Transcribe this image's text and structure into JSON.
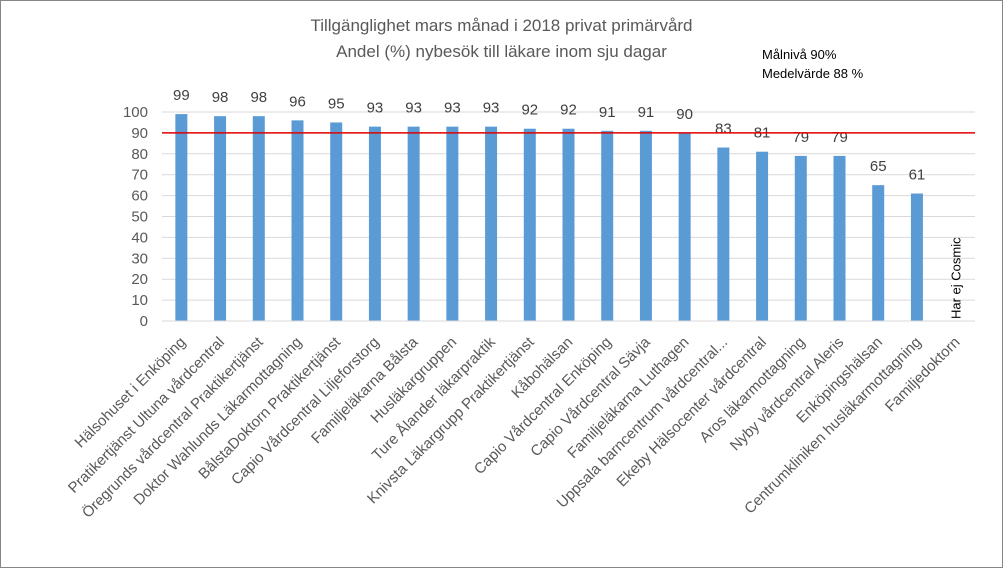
{
  "chart_data": {
    "type": "bar",
    "title": "Tillgänglighet mars månad i 2018 privat primärvård",
    "subtitle": "Andel (%) nybesök till läkare inom sju dagar",
    "annotations": [
      "Målnivå 90%",
      "Medelvärde 88 %"
    ],
    "target_line": {
      "value": 90,
      "color": "#e00000"
    },
    "categories": [
      "Hälsohuset i Enköping",
      "Pratikertjänst Ultuna vårdcentral",
      "Öregrunds vårdcentral Praktikertjänst",
      "Doktor Wahlunds Läkarmottagning",
      "BålstaDoktorn Praktikertjänst",
      "Capio Vårdcentral Liljeforstorg",
      "Familjeläkarna Bålsta",
      "Husläkargruppen",
      "Ture Ålander läkarpraktik",
      "Knivsta Läkargrupp Praktikertjänst",
      "Kåbohälsan",
      "Capio Vårdcentral Enköping",
      "Capio Vårdcentral Sävja",
      "Familjeläkarna Luthagen",
      "Uppsala barncentrum vårdcentral...",
      "Ekeby Hälsocenter vårdcentral",
      "Aros läkarmottagning",
      "Nyby vårdcentral Aleris",
      "Enköpingshälsan",
      "Centrumkliniken husläkarmottagning",
      "Familjedoktorn"
    ],
    "values": [
      99,
      98,
      98,
      96,
      95,
      93,
      93,
      93,
      93,
      92,
      92,
      91,
      91,
      90,
      83,
      81,
      79,
      79,
      65,
      61,
      null
    ],
    "missing_label": "Har ej Cosmic",
    "ylim": [
      0,
      100
    ],
    "yticks": [
      0,
      10,
      20,
      30,
      40,
      50,
      60,
      70,
      80,
      90,
      100
    ],
    "grid": true,
    "bar_color": "#5b9bd5",
    "xlabel": "",
    "ylabel": ""
  }
}
